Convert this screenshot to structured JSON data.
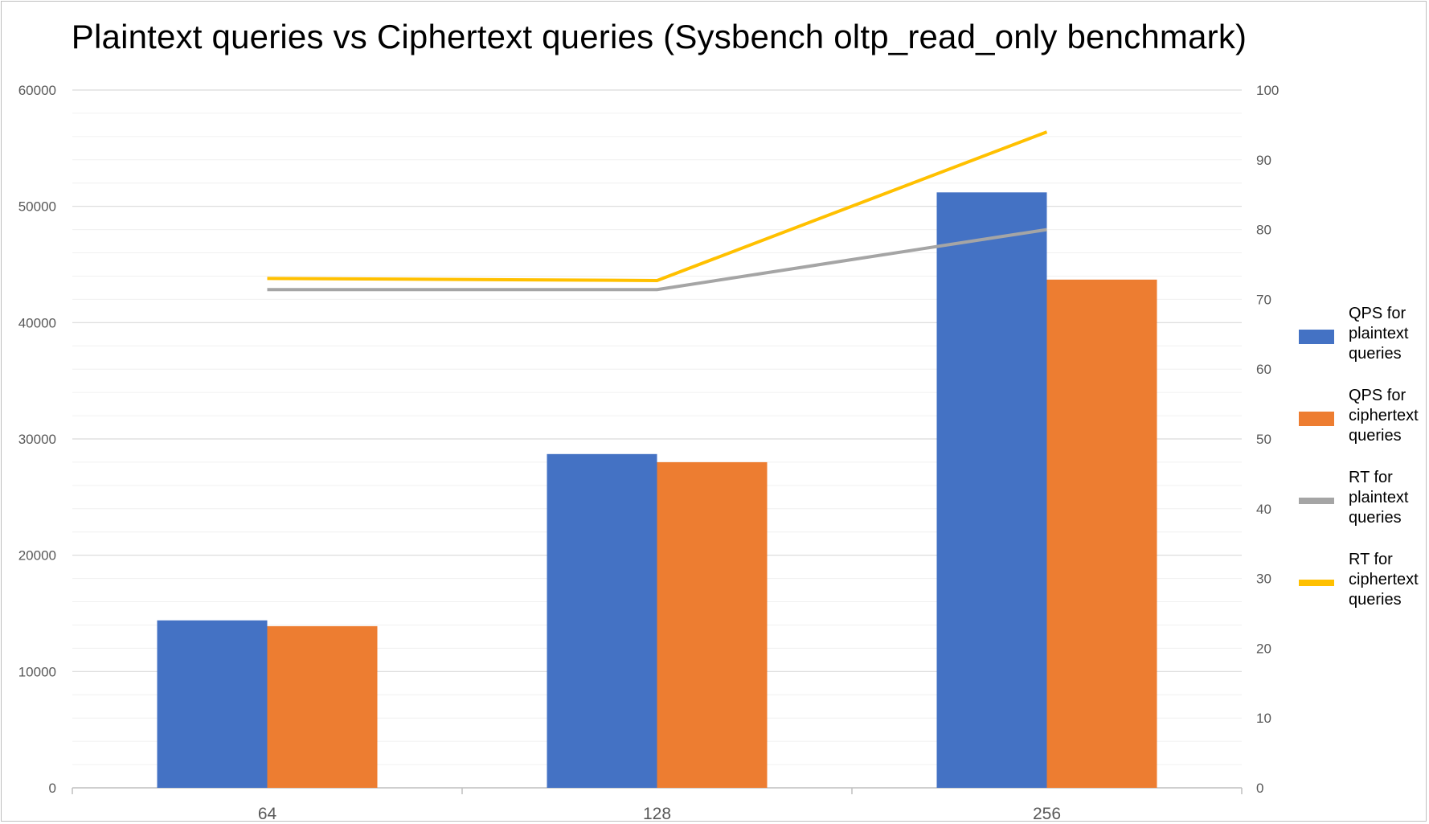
{
  "chart_data": {
    "type": "bar",
    "title": "Plaintext queries vs Ciphertext queries (Sysbench oltp_read_only benchmark)",
    "categories": [
      "64",
      "128",
      "256"
    ],
    "y_left": {
      "lim": [
        0,
        60000
      ],
      "ticks": [
        "0",
        "10000",
        "20000",
        "30000",
        "40000",
        "50000",
        "60000"
      ]
    },
    "y_right": {
      "lim": [
        0,
        100
      ],
      "ticks": [
        "0",
        "10",
        "20",
        "30",
        "40",
        "50",
        "60",
        "70",
        "80",
        "90",
        "100"
      ]
    },
    "series": [
      {
        "name": "QPS for plaintext queries",
        "type": "bar",
        "axis": "left",
        "color": "#4472C4",
        "values": [
          14400,
          28700,
          51200
        ]
      },
      {
        "name": "QPS for ciphertext queries",
        "type": "bar",
        "axis": "left",
        "color": "#ED7D31",
        "values": [
          13900,
          28000,
          43700
        ]
      },
      {
        "name": "RT for plaintext queries",
        "type": "line",
        "axis": "right",
        "color": "#A5A5A5",
        "values": [
          71.4,
          71.4,
          80.0
        ]
      },
      {
        "name": "RT for ciphertext queries",
        "type": "line",
        "axis": "right",
        "color": "#FFC000",
        "values": [
          73.0,
          72.7,
          94.0
        ]
      }
    ],
    "grid": true,
    "legend_position": "right"
  }
}
